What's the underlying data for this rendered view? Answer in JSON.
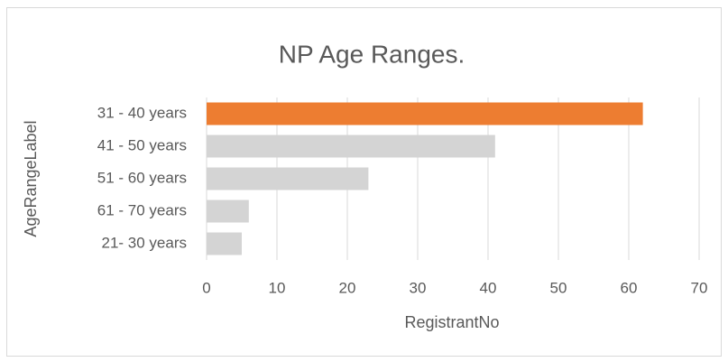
{
  "chart_data": {
    "type": "bar",
    "orientation": "horizontal",
    "title": "NP Age Ranges.",
    "x_label": "RegistrantNo",
    "y_label": "AgeRangeLabel",
    "categories": [
      "31 - 40 years",
      "41 - 50 years",
      "51 - 60 years",
      "61 - 70 years",
      "21- 30 years"
    ],
    "values": [
      62,
      41,
      23,
      6,
      5
    ],
    "colors": [
      "#ed7d31",
      "#d4d4d4",
      "#d4d4d4",
      "#d4d4d4",
      "#d4d4d4"
    ],
    "xlim": [
      0,
      70
    ],
    "xticks": [
      0,
      10,
      20,
      30,
      40,
      50,
      60,
      70
    ],
    "grid": true
  }
}
